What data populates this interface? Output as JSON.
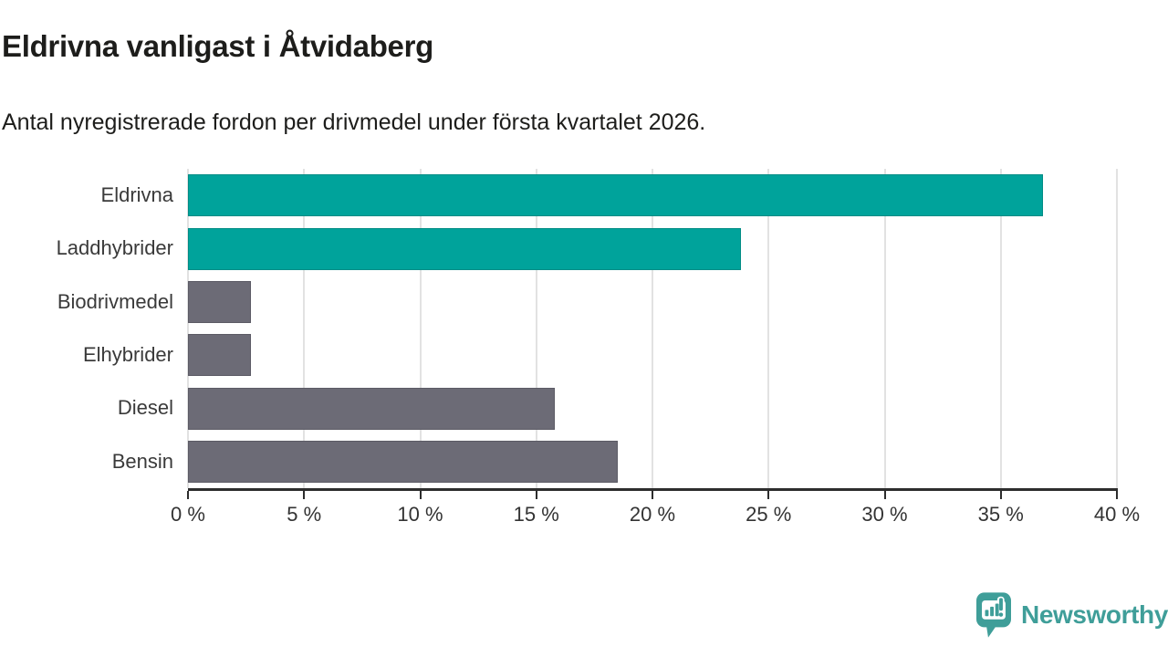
{
  "header": {
    "title": "Eldrivna vanligast i Åtvidaberg",
    "subtitle": "Antal nyregistrerade fordon per drivmedel under första kvartalet 2026."
  },
  "colors": {
    "teal": "#00A39B",
    "gray": "#6C6B76",
    "axis": "#2D2D2D",
    "gridline": "#E2E2E2",
    "title_text": "#1D1D1B",
    "label_text": "#3A3A3A",
    "logo_teal": "#3F9E99"
  },
  "chart_data": {
    "type": "bar",
    "orientation": "horizontal",
    "title": "Eldrivna vanligast i Åtvidaberg",
    "subtitle": "Antal nyregistrerade fordon per drivmedel under första kvartalet 2026.",
    "categories": [
      "Eldrivna",
      "Laddhybrider",
      "Biodrivmedel",
      "Elhybrider",
      "Diesel",
      "Bensin"
    ],
    "values": [
      36.8,
      23.8,
      2.7,
      2.7,
      15.8,
      18.5
    ],
    "unit": "%",
    "series_colors": [
      "teal",
      "teal",
      "gray",
      "gray",
      "gray",
      "gray"
    ],
    "xlim": [
      0,
      40
    ],
    "x_ticks": [
      0,
      5,
      10,
      15,
      20,
      25,
      30,
      35,
      40
    ],
    "x_tick_labels": [
      "0 %",
      "5 %",
      "10 %",
      "15 %",
      "20 %",
      "25 %",
      "30 %",
      "35 %",
      "40 %"
    ],
    "grid": "vertical",
    "legend": "none"
  },
  "footer": {
    "brand": "Newsworthy",
    "logo_icon": "newsworthy-pin-chart-icon"
  }
}
